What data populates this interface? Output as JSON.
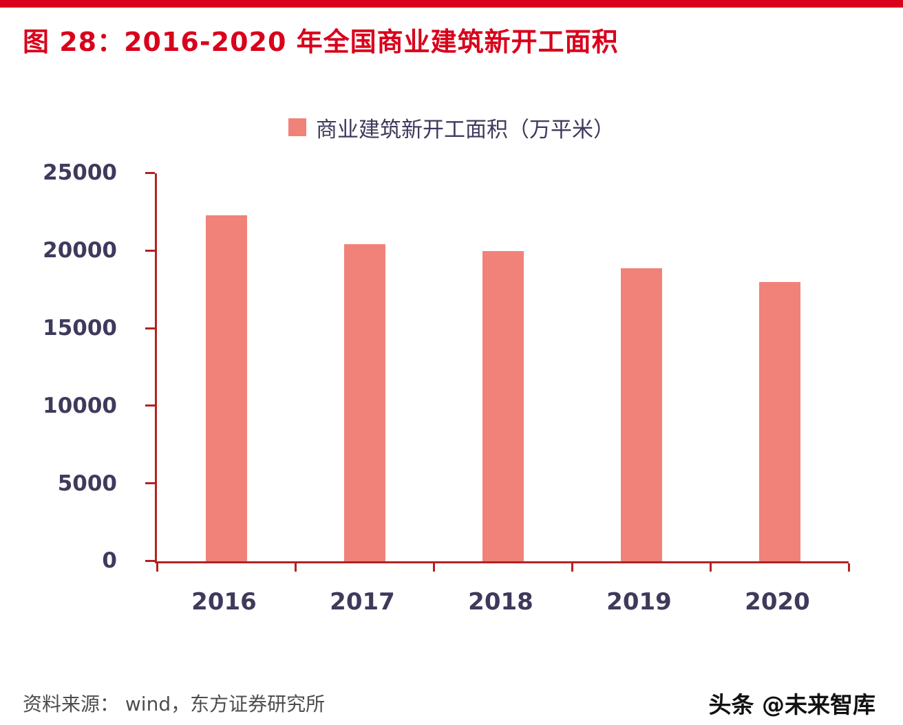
{
  "page": {
    "title": "图 28：2016-2020 年全国商业建筑新开工面积",
    "source": "资料来源：  wind，东方证券研究所",
    "watermark": "头条 @未来智库"
  },
  "colors": {
    "accent_red": "#D9001B",
    "bar": "#F0827A",
    "axis_line": "#B22222",
    "axis_text": "#3E3A5C",
    "source_text": "#4D4D4D"
  },
  "chart_data": {
    "type": "bar",
    "categories": [
      "2016",
      "2017",
      "2018",
      "2019",
      "2020"
    ],
    "series": [
      {
        "name": "商业建筑新开工面积（万平米）",
        "values": [
          22300,
          20450,
          20000,
          18900,
          18000
        ]
      }
    ],
    "title": "图 28：2016-2020 年全国商业建筑新开工面积",
    "xlabel": "",
    "ylabel": "",
    "ylim": [
      0,
      25000
    ],
    "ytick_step": 5000,
    "yticks": [
      0,
      5000,
      10000,
      15000,
      20000,
      25000
    ],
    "grid": false,
    "legend_position": "top-center",
    "bar_color": "#F0827A"
  }
}
